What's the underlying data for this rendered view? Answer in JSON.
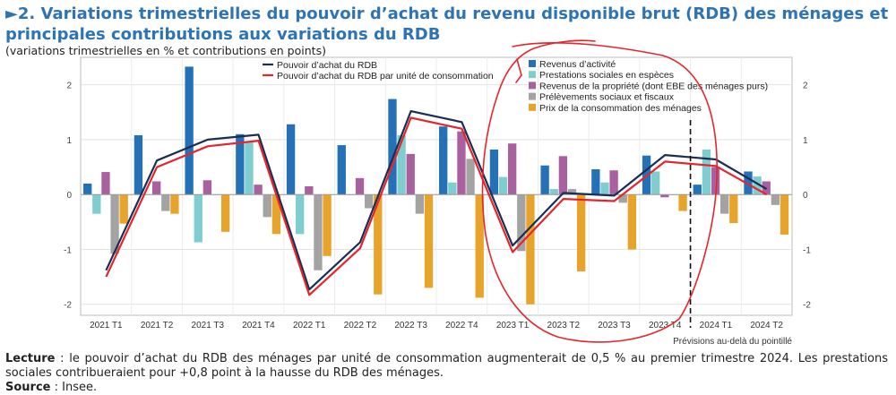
{
  "header": {
    "title_prefix": "►2.",
    "title": "Variations trimestrielles du pouvoir d’achat du revenu disponible brut (RDB) des ménages et principales contributions aux variations du RDB",
    "subtitle": "(variations trimestrielles en % et contributions en points)"
  },
  "chart_data": {
    "type": "bar",
    "categories": [
      "2021 T1",
      "2021 T2",
      "2021 T3",
      "2021 T4",
      "2022 T1",
      "2022 T2",
      "2022 T3",
      "2022 T4",
      "2023 T1",
      "2023 T2",
      "2023 T3",
      "2023 T4",
      "2024 T1",
      "2024 T2"
    ],
    "ylim": [
      -2.2,
      2.5
    ],
    "yticks": [
      -2,
      -1,
      0,
      1,
      2
    ],
    "yticks_right": [
      -2,
      -1,
      0,
      1,
      2
    ],
    "grid": true,
    "series": [
      {
        "name": "Revenus d’activité",
        "kind": "bar",
        "color": "#2471B8",
        "values": [
          0.2,
          1.08,
          2.33,
          1.1,
          1.28,
          0.9,
          1.74,
          1.24,
          0.82,
          0.53,
          0.46,
          0.71,
          0.18,
          0.42
        ]
      },
      {
        "name": "Prestations sociales en espèces",
        "kind": "bar",
        "color": "#7FCDCF",
        "values": [
          -0.35,
          0.0,
          -0.87,
          0.95,
          -0.72,
          0.0,
          1.08,
          0.22,
          0.32,
          0.1,
          0.22,
          0.42,
          0.82,
          0.33
        ]
      },
      {
        "name": "Revenus de la propriété (dont EBE des ménages purs)",
        "kind": "bar",
        "color": "#A8609E",
        "values": [
          0.41,
          0.24,
          0.26,
          0.18,
          0.15,
          0.3,
          0.74,
          1.15,
          0.93,
          0.7,
          0.44,
          -0.05,
          0.5,
          0.24
        ]
      },
      {
        "name": "Prélèvements sociaux et fiscaux",
        "kind": "bar",
        "color": "#A3A3A3",
        "values": [
          -1.08,
          -0.3,
          0.0,
          -0.41,
          -1.38,
          -0.25,
          -0.35,
          0.65,
          -1.03,
          0.1,
          -0.15,
          0.0,
          -0.35,
          -0.19
        ]
      },
      {
        "name": "Prix de la consommation des ménages",
        "kind": "bar",
        "color": "#E8A32B",
        "values": [
          -0.53,
          -0.35,
          -0.68,
          -0.72,
          -1.12,
          -1.82,
          -1.7,
          -1.88,
          -2.0,
          -1.4,
          -1.0,
          -0.3,
          -0.52,
          -0.73
        ]
      },
      {
        "name": "Pouvoir d’achat du RDB",
        "kind": "line",
        "color": "#1A2E52",
        "values": [
          -1.38,
          0.62,
          1.0,
          1.09,
          -1.73,
          -0.87,
          1.52,
          1.32,
          -0.93,
          0.03,
          -0.02,
          0.72,
          0.64,
          0.1
        ]
      },
      {
        "name": "Pouvoir d’achat du RDB par unité de consommation",
        "kind": "line",
        "color": "#E3262E",
        "values": [
          -1.5,
          0.5,
          0.88,
          0.98,
          -1.83,
          -0.98,
          1.4,
          1.2,
          -1.05,
          -0.08,
          -0.12,
          0.6,
          0.52,
          0.0
        ]
      }
    ],
    "forecast_marker": {
      "after_category": "2023 T4",
      "label": "Prévisions au-delà du pointillé"
    }
  },
  "footer": {
    "lecture_label": "Lecture",
    "lecture_text": " : le pouvoir d’achat du RDB des ménages par unité de consommation augmenterait de 0,5 % au premier trimestre 2024. Les prestations sociales contribueraient pour +0,8 point à la hausse du RDB des ménages.",
    "source_label": "Source",
    "source_text": " : Insee."
  }
}
